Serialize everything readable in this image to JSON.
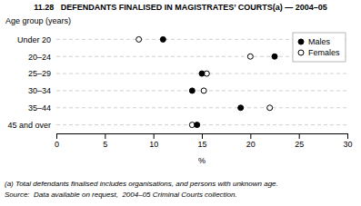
{
  "chart_data": {
    "type": "dot",
    "title": "11.28   DEFENDANTS FINALISED IN MAGISTRATES’ COURTS(a) — 2004–05",
    "ylabel": "Age group (years)",
    "xlabel": "%",
    "categories": [
      "Under 20",
      "20–24",
      "25–29",
      "30–34",
      "35–44",
      "45 and over"
    ],
    "series": [
      {
        "name": "Males",
        "color": "#000000",
        "marker": "circle",
        "values": [
          11.0,
          22.5,
          15.0,
          14.0,
          19.0,
          14.5
        ]
      },
      {
        "name": "Females",
        "color": "#000000",
        "marker": "open-circle",
        "values": [
          8.5,
          20.0,
          15.5,
          15.2,
          22.0,
          14.0
        ]
      }
    ],
    "xlim": [
      0,
      30
    ],
    "xticks": [
      0,
      5,
      10,
      15,
      20,
      25,
      30
    ],
    "grid": true,
    "legend": "upper-right",
    "annotations": [
      "(a) Total defendants finalised includes organisations, and persons with unknown age.",
      "Source:  Data available on request,  2004–05 Criminal Courts collection."
    ]
  }
}
